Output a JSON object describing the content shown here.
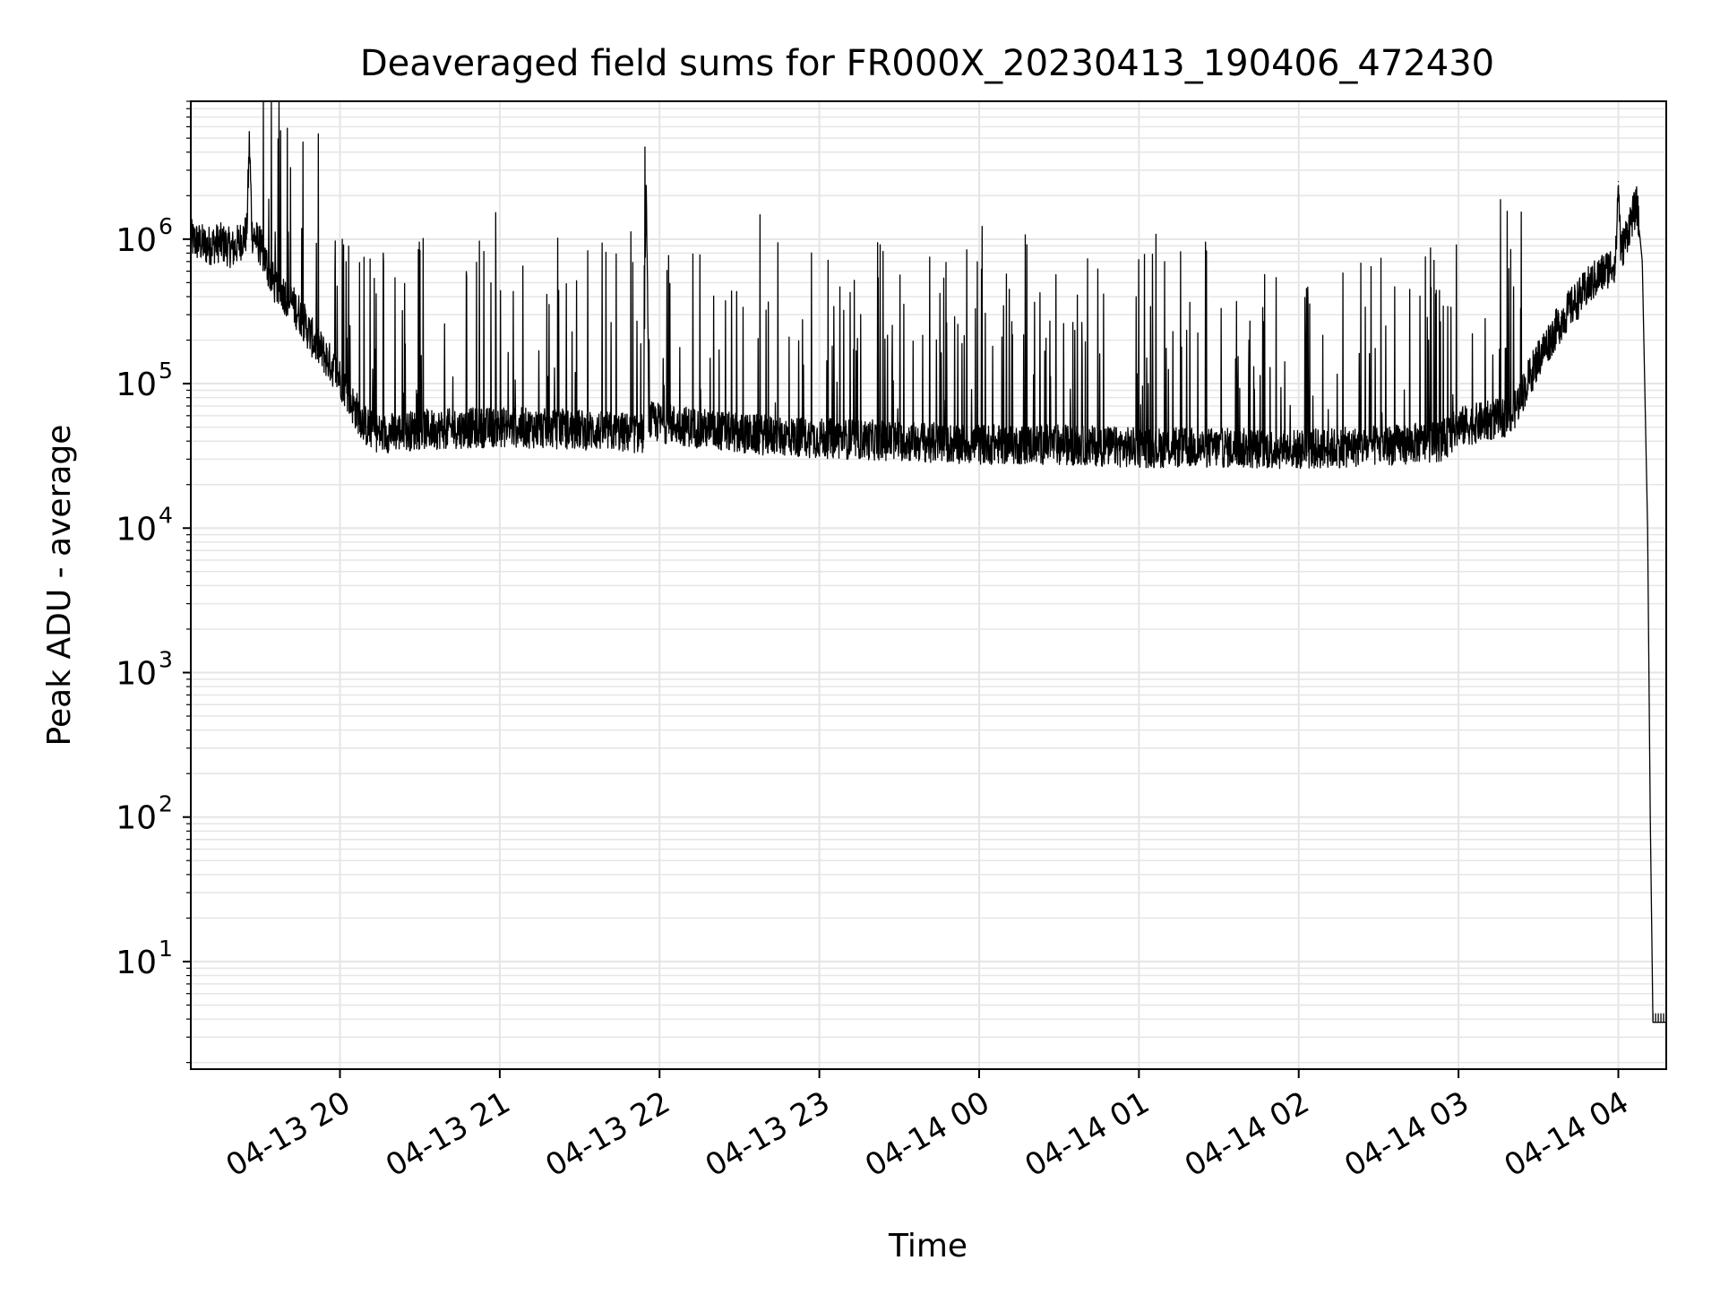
{
  "chart_data": {
    "type": "line",
    "title": "Deaveraged field sums for FR000X_20230413_190406_472430",
    "xlabel": "Time",
    "ylabel": "Peak ADU - average",
    "yscale": "log",
    "ylim": [
      1.8,
      9000000
    ],
    "xlim": [
      "04-13 19:04",
      "04-14 04:18"
    ],
    "grid": true,
    "line_color": "#000000",
    "grid_color": "#e5e5e5",
    "x_ticks": [
      {
        "t": "04-13 20:00",
        "label": "04-13 20"
      },
      {
        "t": "04-13 21:00",
        "label": "04-13 21"
      },
      {
        "t": "04-13 22:00",
        "label": "04-13 22"
      },
      {
        "t": "04-13 23:00",
        "label": "04-13 23"
      },
      {
        "t": "04-14 00:00",
        "label": "04-14 00"
      },
      {
        "t": "04-14 01:00",
        "label": "04-14 01"
      },
      {
        "t": "04-14 02:00",
        "label": "04-14 02"
      },
      {
        "t": "04-14 03:00",
        "label": "04-14 03"
      },
      {
        "t": "04-14 04:00",
        "label": "04-14 04"
      }
    ],
    "y_ticks": [
      {
        "value": 10,
        "base": "10",
        "exp": "1"
      },
      {
        "value": 100,
        "base": "10",
        "exp": "2"
      },
      {
        "value": 1000,
        "base": "10",
        "exp": "3"
      },
      {
        "value": 10000,
        "base": "10",
        "exp": "4"
      },
      {
        "value": 100000,
        "base": "10",
        "exp": "5"
      },
      {
        "value": 1000000,
        "base": "10",
        "exp": "6"
      }
    ],
    "series": [
      {
        "points": [
          [
            "04-13 19:04",
            1000000
          ],
          [
            "04-13 19:10",
            900000
          ],
          [
            "04-13 19:15",
            950000
          ],
          [
            "04-13 19:20",
            850000
          ],
          [
            "04-13 19:25",
            1100000
          ],
          [
            "04-13 19:26",
            4800000
          ],
          [
            "04-13 19:27",
            1100000
          ],
          [
            "04-13 19:30",
            900000
          ],
          [
            "04-13 19:35",
            500000
          ],
          [
            "04-13 19:40",
            400000
          ],
          [
            "04-13 19:45",
            300000
          ],
          [
            "04-13 19:50",
            200000
          ],
          [
            "04-13 19:55",
            150000
          ],
          [
            "04-13 20:00",
            110000
          ],
          [
            "04-13 20:05",
            70000
          ],
          [
            "04-13 20:10",
            50000
          ],
          [
            "04-13 20:15",
            45000
          ],
          [
            "04-13 20:30",
            48000
          ],
          [
            "04-13 21:00",
            50000
          ],
          [
            "04-13 21:30",
            48000
          ],
          [
            "04-13 21:54",
            45000
          ],
          [
            "04-13 21:55",
            2300000
          ],
          [
            "04-13 21:56",
            55000
          ],
          [
            "04-13 22:30",
            45000
          ],
          [
            "04-13 23:00",
            42000
          ],
          [
            "04-13 23:30",
            40000
          ],
          [
            "04-14 00:00",
            38000
          ],
          [
            "04-14 00:30",
            38000
          ],
          [
            "04-14 01:00",
            36000
          ],
          [
            "04-14 01:30",
            36000
          ],
          [
            "04-14 02:00",
            35000
          ],
          [
            "04-14 02:30",
            37000
          ],
          [
            "04-14 02:54",
            40000
          ],
          [
            "04-14 03:00",
            50000
          ],
          [
            "04-14 03:20",
            60000
          ],
          [
            "04-14 03:30",
            150000
          ],
          [
            "04-14 03:40",
            300000
          ],
          [
            "04-14 03:50",
            500000
          ],
          [
            "04-14 03:59",
            700000
          ],
          [
            "04-14 04:00",
            2500000
          ],
          [
            "04-14 04:01",
            800000
          ],
          [
            "04-14 04:05",
            1400000
          ],
          [
            "04-14 04:07",
            1700000
          ],
          [
            "04-14 04:09",
            700000
          ],
          [
            "04-14 04:11",
            10000
          ],
          [
            "04-14 04:12",
            100
          ],
          [
            "04-14 04:13",
            3.8
          ],
          [
            "04-14 04:18",
            3.8
          ]
        ]
      }
    ]
  }
}
